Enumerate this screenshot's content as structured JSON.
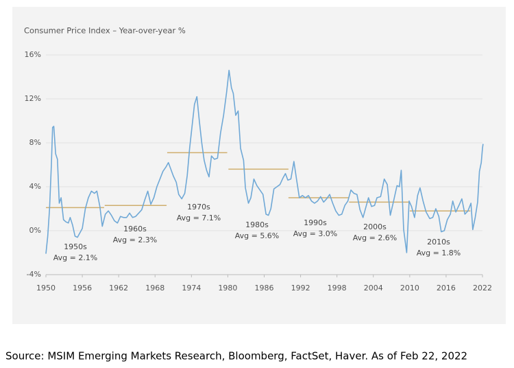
{
  "chart_data": {
    "type": "line",
    "title": "Consumer Price Index – Year-over-year %",
    "x": [
      1950.0,
      1950.3,
      1950.6,
      1950.9,
      1951.1,
      1951.3,
      1951.6,
      1951.9,
      1952.2,
      1952.5,
      1952.9,
      1953.3,
      1953.7,
      1954.0,
      1954.4,
      1954.8,
      1955.2,
      1955.6,
      1956.0,
      1956.5,
      1957.0,
      1957.5,
      1958.0,
      1958.4,
      1958.9,
      1959.3,
      1959.8,
      1960.3,
      1960.8,
      1961.3,
      1961.8,
      1962.3,
      1962.8,
      1963.3,
      1963.8,
      1964.3,
      1964.8,
      1965.3,
      1965.8,
      1966.3,
      1966.8,
      1967.3,
      1967.8,
      1968.3,
      1968.8,
      1969.3,
      1969.8,
      1970.2,
      1970.6,
      1971.0,
      1971.5,
      1971.9,
      1972.4,
      1972.9,
      1973.3,
      1973.7,
      1974.1,
      1974.5,
      1974.9,
      1975.3,
      1975.7,
      1976.1,
      1976.5,
      1976.9,
      1977.3,
      1977.8,
      1978.3,
      1978.8,
      1979.3,
      1979.8,
      1980.2,
      1980.6,
      1980.9,
      1981.3,
      1981.7,
      1982.1,
      1982.6,
      1982.9,
      1983.4,
      1983.8,
      1984.3,
      1984.8,
      1985.3,
      1985.8,
      1986.3,
      1986.7,
      1987.1,
      1987.6,
      1988.1,
      1988.6,
      1989.1,
      1989.5,
      1989.9,
      1990.4,
      1990.9,
      1991.3,
      1991.8,
      1992.3,
      1992.8,
      1993.3,
      1993.8,
      1994.3,
      1994.8,
      1995.3,
      1995.8,
      1996.3,
      1996.8,
      1997.3,
      1997.8,
      1998.3,
      1998.8,
      1999.3,
      1999.8,
      2000.3,
      2000.8,
      2001.3,
      2001.8,
      2002.3,
      2002.8,
      2003.2,
      2003.7,
      2004.2,
      2004.6,
      2005.2,
      2005.8,
      2006.3,
      2006.8,
      2007.3,
      2007.9,
      2008.3,
      2008.6,
      2009.0,
      2009.5,
      2009.9,
      2010.3,
      2010.8,
      2011.3,
      2011.7,
      2012.2,
      2012.7,
      2013.3,
      2013.8,
      2014.3,
      2014.8,
      2015.2,
      2015.7,
      2016.2,
      2016.7,
      2017.1,
      2017.6,
      2018.2,
      2018.6,
      2019.1,
      2019.6,
      2020.1,
      2020.4,
      2020.8,
      2021.2,
      2021.5,
      2021.8,
      2022.0,
      2022.1
    ],
    "series": [
      {
        "name": "CPI YoY",
        "color": "#6fa8d6",
        "values": [
          -2.1,
          -0.5,
          2.0,
          6.0,
          9.4,
          9.5,
          7.0,
          6.5,
          2.5,
          3.0,
          1.0,
          0.8,
          0.7,
          1.2,
          0.5,
          -0.5,
          -0.6,
          -0.2,
          0.2,
          2.0,
          3.0,
          3.6,
          3.4,
          3.6,
          2.2,
          0.4,
          1.5,
          1.8,
          1.4,
          0.9,
          0.7,
          1.3,
          1.2,
          1.2,
          1.6,
          1.2,
          1.3,
          1.6,
          1.9,
          2.8,
          3.6,
          2.4,
          3.0,
          4.0,
          4.7,
          5.4,
          5.8,
          6.2,
          5.6,
          5.0,
          4.4,
          3.3,
          2.9,
          3.4,
          5.0,
          7.5,
          9.5,
          11.5,
          12.2,
          10.0,
          8.0,
          6.4,
          5.5,
          4.9,
          6.8,
          6.5,
          6.6,
          8.9,
          10.5,
          12.6,
          14.6,
          13.0,
          12.5,
          10.5,
          10.9,
          7.5,
          6.4,
          3.9,
          2.5,
          3.0,
          4.7,
          4.1,
          3.7,
          3.3,
          1.5,
          1.4,
          2.0,
          3.8,
          4.0,
          4.2,
          4.8,
          5.2,
          4.6,
          4.7,
          6.3,
          4.8,
          3.0,
          3.2,
          3.0,
          3.2,
          2.7,
          2.5,
          2.7,
          3.1,
          2.6,
          2.9,
          3.3,
          2.5,
          1.8,
          1.4,
          1.5,
          2.3,
          2.7,
          3.7,
          3.4,
          3.3,
          1.9,
          1.2,
          2.2,
          3.0,
          2.2,
          2.3,
          3.0,
          3.1,
          4.7,
          4.2,
          1.4,
          2.6,
          4.1,
          4.0,
          5.5,
          0.1,
          -2.0,
          2.7,
          2.2,
          1.2,
          3.2,
          3.9,
          2.7,
          1.7,
          1.1,
          1.2,
          2.0,
          1.3,
          -0.1,
          0.0,
          1.0,
          1.5,
          2.7,
          1.7,
          2.4,
          2.9,
          1.5,
          1.8,
          2.5,
          0.1,
          1.2,
          2.6,
          5.4,
          6.2,
          7.5,
          7.9
        ]
      }
    ],
    "decade_averages": [
      {
        "label": "1950s",
        "avg_label": "Avg = 2.1%",
        "value": 2.1,
        "start": 1950,
        "end": 1959.6
      },
      {
        "label": "1960s",
        "avg_label": "Avg = 2.3%",
        "value": 2.3,
        "start": 1959.7,
        "end": 1969.9
      },
      {
        "label": "1970s",
        "avg_label": "Avg = 7.1%",
        "value": 7.1,
        "start": 1970,
        "end": 1979.9
      },
      {
        "label": "1980s",
        "avg_label": "Avg = 5.6%",
        "value": 5.6,
        "start": 1980.1,
        "end": 1990
      },
      {
        "label": "1990s",
        "avg_label": "Avg = 3.0%",
        "value": 3.0,
        "start": 1990,
        "end": 2000
      },
      {
        "label": "2000s",
        "avg_label": "Avg = 2.6%",
        "value": 2.6,
        "start": 2000,
        "end": 2010
      },
      {
        "label": "2010s",
        "avg_label": "Avg = 1.8%",
        "value": 1.8,
        "start": 2010,
        "end": 2020
      }
    ],
    "avg_color": "#cfae6e",
    "xlim": [
      1950,
      2022
    ],
    "xticks": [
      1950,
      1956,
      1962,
      1968,
      1974,
      1980,
      1986,
      1992,
      1998,
      2004,
      2010,
      2016,
      2022
    ],
    "ylim": [
      -4,
      16
    ],
    "yticks": [
      {
        "value": -4,
        "label": "-4%"
      },
      {
        "value": 0,
        "label": "0%"
      },
      {
        "value": 4,
        "label": "4%"
      },
      {
        "value": 8,
        "label": "8%"
      },
      {
        "value": 12,
        "label": "12%"
      },
      {
        "value": 16,
        "label": "16%"
      }
    ],
    "grid": true,
    "source": "Source: MSIM Emerging Markets Research, Bloomberg, FactSet, Haver. As of Feb 22, 2022"
  }
}
